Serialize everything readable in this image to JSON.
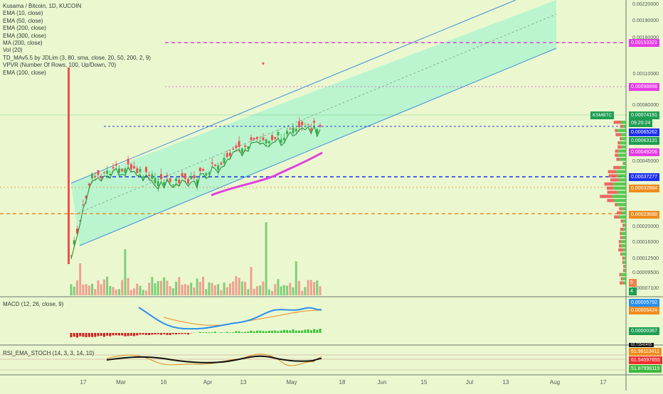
{
  "header": {
    "title": "Kusama / Bitcoin, 1D, KUCOIN",
    "indicators": [
      "EMA (10, close)",
      "EMA (50, close)",
      "EMA (200, close)",
      "EMA (300, close)",
      "MA (200, close)",
      "Vol (20)",
      "TD_MAv5.5 by JDLim (3, 80, sma, close, 20, 50, 200, 2, 9)",
      "VPVR (Number Of Rows, 100, Up/Down, 70)",
      "EMA (100, close)"
    ]
  },
  "panes": {
    "macd_label": "MACD (12, 26, close, 9)",
    "rsi_label": "RSI_EMA_STOCH (14, 3, 3, 14, 10)"
  },
  "price_axis": {
    "ticks": [
      "0.00220000",
      "0.00190000",
      "0.00160000",
      "0.00110000",
      "0.00080000",
      "0.00045000",
      "0.00020000",
      "0.00016000",
      "0.00012500",
      "0.00009500",
      "0.00007100"
    ]
  },
  "price_tags": {
    "level_1": "0.00153321",
    "level_2": "0.00098898",
    "symbol": "KSMBTC",
    "last_price": "0.00074191",
    "countdown": "09:20:24",
    "blue_level": "0.00065262",
    "green_level": "0.00063131",
    "pink_level": "0.00049206",
    "blue_dashed": "0.00037277",
    "orange_level_1": "0.00032884",
    "orange_level_2": "0.00023688",
    "vol_5": "5",
    "vol_4": "4",
    "macd_blue": "0.00005792",
    "macd_orange": "0.00005424",
    "macd_hist": "0.00000367",
    "rsi_top": "62.71541415",
    "rsi_1": "61.98113411",
    "rsi_2": "61.54597655",
    "rsi_3": "51.87998119"
  },
  "time_axis": {
    "labels": [
      "17",
      "Mar",
      "16",
      "Apr",
      "13",
      "May",
      "18",
      "Jun",
      "15",
      "Jul",
      "13",
      "Aug",
      "17"
    ]
  },
  "colors": {
    "background": "#ebf8cf",
    "channel_fill": "#b2f5cf",
    "channel_line": "#3d8fdc",
    "up": "#3cb04a",
    "down": "#ef4f4f",
    "magenta": "#e63ae6",
    "orange": "#f08c1e",
    "blue": "#1b2ff0"
  }
}
